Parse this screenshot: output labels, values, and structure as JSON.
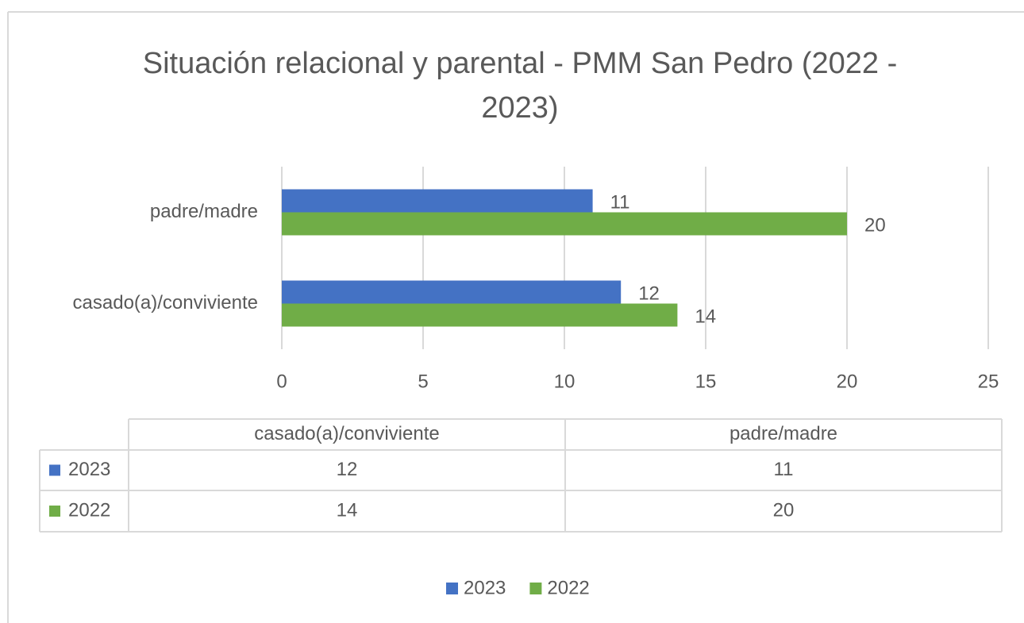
{
  "chart_data": {
    "type": "bar",
    "orientation": "horizontal",
    "title": "Situación relacional y parental - PMM San Pedro (2022 - 2023)",
    "categories": [
      "casado(a)/conviviente",
      "padre/madre"
    ],
    "series": [
      {
        "name": "2023",
        "color": "#4472c4",
        "values": [
          12,
          11
        ]
      },
      {
        "name": "2022",
        "color": "#70ad47",
        "values": [
          14,
          20
        ]
      }
    ],
    "xlim": [
      0,
      25
    ],
    "xticks": [
      0,
      5,
      10,
      15,
      20,
      25
    ],
    "grid": true,
    "legend": "bottom",
    "data_table": true
  }
}
